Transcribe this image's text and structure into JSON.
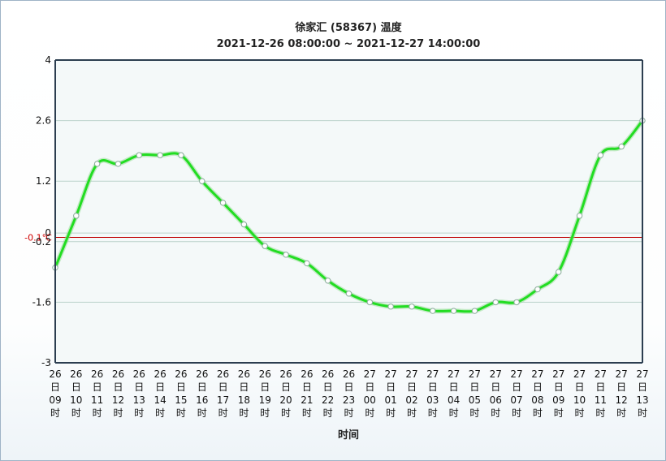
{
  "chart_data": {
    "type": "line",
    "title": "徐家汇 (58367) 温度",
    "subtitle": "2021-12-26 08:00:00 ~ 2021-12-27 14:00:00",
    "xlabel": "时间",
    "ylabel": "",
    "ylim": [
      -3,
      4
    ],
    "yticks": [
      "4",
      "2.6",
      "1.2",
      "0",
      "-0.2",
      "-1.6",
      "-3"
    ],
    "ytick_values": [
      4,
      2.6,
      1.2,
      0,
      -0.2,
      -1.6,
      -3
    ],
    "grid": true,
    "legend": "none",
    "reference_line": {
      "value": -0.1,
      "label": "-0.1℃",
      "color": "#c00000"
    },
    "series_color": "#22dd22",
    "x": [
      [
        "26",
        "日",
        "09",
        "时"
      ],
      [
        "26",
        "日",
        "10",
        "时"
      ],
      [
        "26",
        "日",
        "11",
        "时"
      ],
      [
        "26",
        "日",
        "12",
        "时"
      ],
      [
        "26",
        "日",
        "13",
        "时"
      ],
      [
        "26",
        "日",
        "14",
        "时"
      ],
      [
        "26",
        "日",
        "15",
        "时"
      ],
      [
        "26",
        "日",
        "16",
        "时"
      ],
      [
        "26",
        "日",
        "17",
        "时"
      ],
      [
        "26",
        "日",
        "18",
        "时"
      ],
      [
        "26",
        "日",
        "19",
        "时"
      ],
      [
        "26",
        "日",
        "20",
        "时"
      ],
      [
        "26",
        "日",
        "21",
        "时"
      ],
      [
        "26",
        "日",
        "22",
        "时"
      ],
      [
        "26",
        "日",
        "23",
        "时"
      ],
      [
        "27",
        "日",
        "00",
        "时"
      ],
      [
        "27",
        "日",
        "01",
        "时"
      ],
      [
        "27",
        "日",
        "02",
        "时"
      ],
      [
        "27",
        "日",
        "03",
        "时"
      ],
      [
        "27",
        "日",
        "04",
        "时"
      ],
      [
        "27",
        "日",
        "05",
        "时"
      ],
      [
        "27",
        "日",
        "06",
        "时"
      ],
      [
        "27",
        "日",
        "07",
        "时"
      ],
      [
        "27",
        "日",
        "08",
        "时"
      ],
      [
        "27",
        "日",
        "09",
        "时"
      ],
      [
        "27",
        "日",
        "10",
        "时"
      ],
      [
        "27",
        "日",
        "11",
        "时"
      ],
      [
        "27",
        "日",
        "12",
        "时"
      ],
      [
        "27",
        "日",
        "13",
        "时"
      ]
    ],
    "series": [
      {
        "values": [
          -0.8,
          0.4,
          1.6,
          1.6,
          1.8,
          1.8,
          1.8,
          1.2,
          0.7,
          0.2,
          -0.3,
          -0.5,
          -0.7,
          -1.1,
          -1.4,
          -1.6,
          -1.7,
          -1.7,
          -1.8,
          -1.8,
          -1.8,
          -1.6,
          -1.6,
          -1.3,
          -0.9,
          0.4,
          1.8,
          2.0,
          2.6
        ]
      }
    ]
  }
}
